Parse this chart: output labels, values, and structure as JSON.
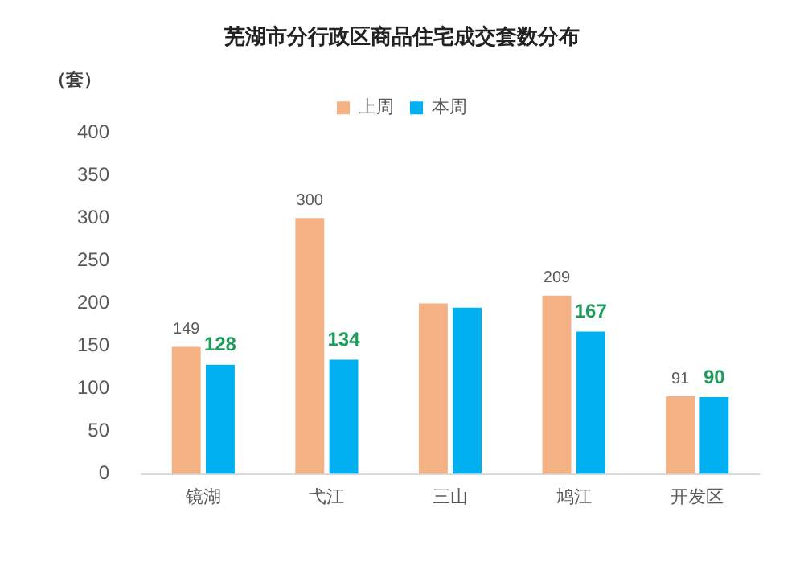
{
  "chart_data": {
    "type": "bar",
    "title": "芜湖市分行政区商品住宅成交套数分布",
    "ylabel": "（套）",
    "categories": [
      "镜湖",
      "弋江",
      "三山",
      "鸠江",
      "开发区"
    ],
    "series": [
      {
        "name": "上周",
        "color": "#f4b183",
        "values": [
          149,
          300,
          200,
          209,
          91
        ],
        "value_labels": [
          "149",
          "300",
          null,
          "209",
          "91"
        ]
      },
      {
        "name": "本周",
        "color": "#00b0f0",
        "values": [
          128,
          134,
          195,
          167,
          90
        ],
        "value_labels": [
          "128",
          "134",
          null,
          "167",
          "90"
        ]
      }
    ],
    "ylim": [
      0,
      400
    ],
    "yticks": [
      0,
      50,
      100,
      150,
      200,
      250,
      300,
      350,
      400
    ],
    "grid": false,
    "legend": "top"
  }
}
